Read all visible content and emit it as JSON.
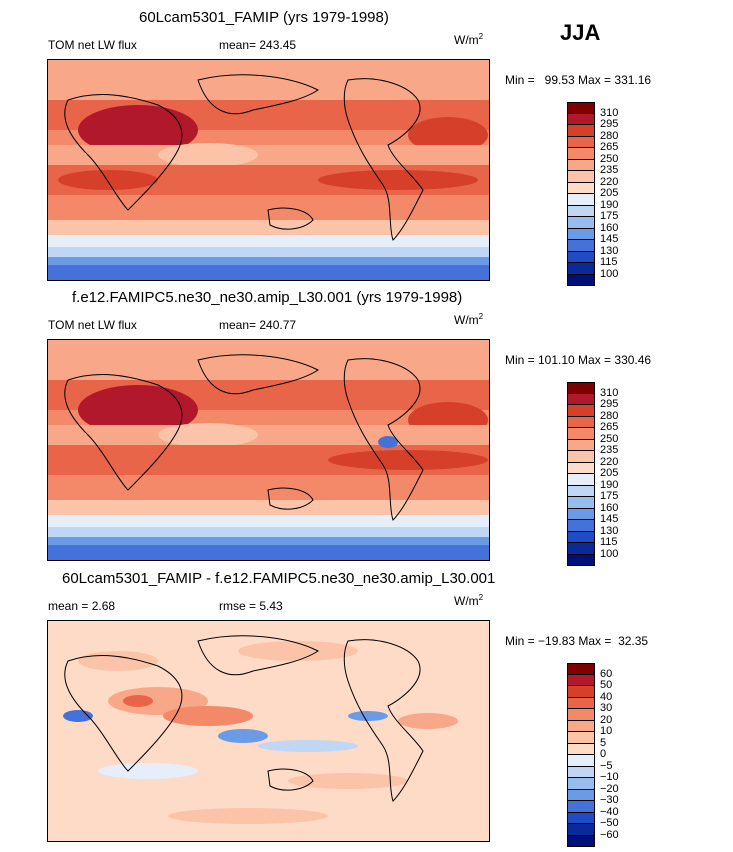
{
  "season": "JJA",
  "panels": [
    {
      "title": "60Lcam5301_FAMIP (yrs 1979-1998)",
      "left_label": "TOM net LW flux",
      "mid_label": "mean= 243.45",
      "units": "W/m",
      "units_exp": "2",
      "minmax": "Min =   99.53 Max = 331.16",
      "scale": [
        "310",
        "295",
        "280",
        "265",
        "250",
        "235",
        "220",
        "205",
        "190",
        "175",
        "160",
        "145",
        "130",
        "115",
        "100"
      ]
    },
    {
      "title": "f.e12.FAMIPC5.ne30_ne30.amip_L30.001 (yrs 1979-1998)",
      "left_label": "TOM net LW flux",
      "mid_label": "mean= 240.77",
      "units": "W/m",
      "units_exp": "2",
      "minmax": "Min = 101.10 Max = 330.46",
      "scale": [
        "310",
        "295",
        "280",
        "265",
        "250",
        "235",
        "220",
        "205",
        "190",
        "175",
        "160",
        "145",
        "130",
        "115",
        "100"
      ]
    },
    {
      "title": "60Lcam5301_FAMIP - f.e12.FAMIPC5.ne30_ne30.amip_L30.001",
      "left_label": "mean =    2.68",
      "mid_label": "rmse =    5.43",
      "units": "W/m",
      "units_exp": "2",
      "minmax": "Min = −19.83 Max =  32.35",
      "scale": [
        "60",
        "50",
        "40",
        "30",
        "20",
        "10",
        "5",
        "0",
        "−5",
        "−10",
        "−20",
        "−30",
        "−40",
        "−50",
        "−60"
      ]
    }
  ],
  "colors": {
    "palette": [
      "#7f0000",
      "#b2182b",
      "#d6402b",
      "#e8654a",
      "#f4896a",
      "#f8a889",
      "#fbc4a8",
      "#fddbc7",
      "#e6eefa",
      "#c0d6f5",
      "#96bdee",
      "#6b9ae6",
      "#4472d8",
      "#1f4cc4",
      "#0a2a9c",
      "#00107a"
    ]
  },
  "chart_data": [
    {
      "type": "heatmap",
      "title": "60Lcam5301_FAMIP (yrs 1979-1998)",
      "variable": "TOM net LW flux",
      "mean": 243.45,
      "min": 99.53,
      "max": 331.16,
      "levels": [
        100,
        115,
        130,
        145,
        160,
        175,
        190,
        205,
        220,
        235,
        250,
        265,
        280,
        295,
        310
      ]
    },
    {
      "type": "heatmap",
      "title": "f.e12.FAMIPC5.ne30_ne30.amip_L30.001 (yrs 1979-1998)",
      "variable": "TOM net LW flux",
      "mean": 240.77,
      "min": 101.1,
      "max": 330.46,
      "levels": [
        100,
        115,
        130,
        145,
        160,
        175,
        190,
        205,
        220,
        235,
        250,
        265,
        280,
        295,
        310
      ]
    },
    {
      "type": "heatmap",
      "title": "60Lcam5301_FAMIP - f.e12.FAMIPC5.ne30_ne30.amip_L30.001",
      "mean": 2.68,
      "rmse": 5.43,
      "min": -19.83,
      "max": 32.35,
      "levels": [
        -60,
        -50,
        -40,
        -30,
        -20,
        -10,
        -5,
        0,
        5,
        10,
        20,
        30,
        40,
        50,
        60
      ]
    }
  ]
}
